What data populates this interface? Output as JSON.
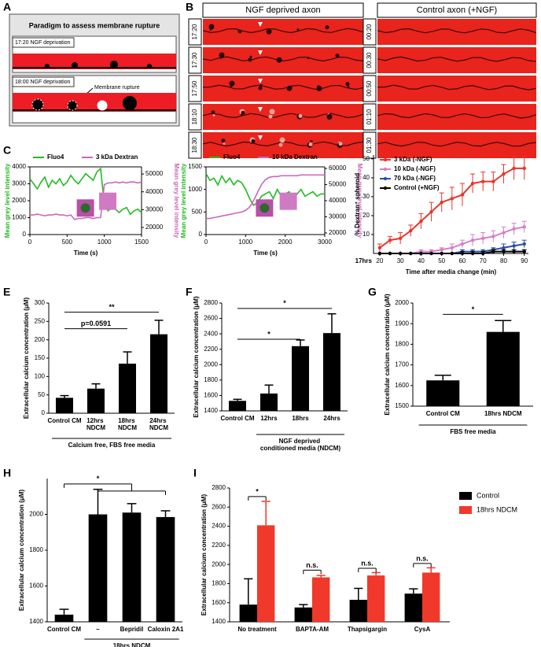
{
  "panel_labels": [
    "A",
    "B",
    "C",
    "D",
    "E",
    "F",
    "G",
    "H",
    "I"
  ],
  "panel_a": {
    "title": "Paradigm to assess membrane rupture",
    "stage_1": "17:20 NGF deprivation",
    "stage_2": "18:00 NGF deprivation",
    "annotation": "Membrane rupture"
  },
  "panel_b": {
    "left_header": "NGF deprived axon",
    "right_header": "Control axon (+NGF)",
    "left_times": [
      "17:20",
      "17:30",
      "17:50",
      "18:10",
      "18:30"
    ],
    "right_times": [
      "00:20",
      "00:30",
      "00:50",
      "01:10",
      "01:30"
    ]
  },
  "chart_data": [
    {
      "type": "line",
      "xlabel": "Time (s)",
      "ylabel": "Mean grey level intensity",
      "y2label": "Mean grey level intensity",
      "x": [
        0,
        50,
        100,
        150,
        200,
        250,
        300,
        350,
        400,
        450,
        500,
        550,
        600,
        650,
        700,
        750,
        800,
        850,
        900,
        950,
        1000,
        1050,
        1100,
        1150,
        1200,
        1250,
        1300,
        1350,
        1400,
        1450,
        1500
      ],
      "xlim": [
        0,
        1500
      ],
      "xticks": [
        0,
        500,
        1000,
        1500
      ],
      "ylim": [
        0,
        4000
      ],
      "yticks": [
        0,
        1000,
        2000,
        3000,
        4000
      ],
      "y2lim": [
        16000,
        54000
      ],
      "y2ticks": [
        20000,
        30000,
        40000,
        50000
      ],
      "series": [
        {
          "name": "Fluo4",
          "color": "#22bb22",
          "values": [
            3300,
            3000,
            2700,
            3100,
            3400,
            2800,
            3200,
            3000,
            3300,
            2900,
            3100,
            3500,
            3200,
            3000,
            3300,
            3600,
            3400,
            3200,
            3700,
            3900,
            1800,
            1400,
            1600,
            1500,
            1300,
            1500,
            1600,
            1200,
            1400,
            1500,
            1300
          ]
        },
        {
          "name": "3 kDa Dextran",
          "color": "#cc66bb",
          "axis": "y2",
          "values": [
            27000,
            27000,
            27500,
            27000,
            26500,
            27000,
            27000,
            27500,
            27000,
            27000,
            26500,
            27000,
            24500,
            25000,
            25000,
            25500,
            25500,
            25000,
            25500,
            25500,
            44000,
            45000,
            45000,
            45500,
            45000,
            45500,
            45000,
            45500,
            45500,
            45000,
            45500
          ]
        }
      ]
    },
    {
      "type": "line",
      "xlabel": "Time (s)",
      "ylabel": "Mean grey level intensity",
      "y2label": "Mean grey level intensity",
      "x": [
        0,
        100,
        200,
        300,
        400,
        500,
        600,
        700,
        800,
        900,
        1000,
        1100,
        1200,
        1300,
        1400,
        1500,
        1600,
        1700,
        1800,
        1900,
        2000,
        2100,
        2200,
        2300,
        2400,
        2500,
        2600,
        2700,
        2800,
        2900,
        3000
      ],
      "xlim": [
        0,
        3000
      ],
      "xticks": [
        0,
        1000,
        2000,
        3000
      ],
      "ylim": [
        0,
        1500
      ],
      "yticks": [
        0,
        500,
        1000,
        1500
      ],
      "y2lim": [
        19000,
        61000
      ],
      "y2ticks": [
        20000,
        30000,
        40000,
        50000,
        60000
      ],
      "series": [
        {
          "name": "Fluo4",
          "color": "#22bb22",
          "values": [
            1350,
            1200,
            1250,
            1100,
            1300,
            1150,
            1250,
            1100,
            1200,
            1150,
            1000,
            800,
            650,
            700,
            850,
            900,
            950,
            800,
            1000,
            850,
            900,
            950,
            800,
            900,
            1000,
            850,
            900,
            950,
            850,
            900,
            900
          ]
        },
        {
          "name": "10 kDa Dextran",
          "color": "#cc66bb",
          "axis": "y2",
          "values": [
            29000,
            29000,
            29500,
            30000,
            30500,
            31000,
            31500,
            32000,
            32500,
            33000,
            34000,
            36000,
            40000,
            45000,
            50000,
            53000,
            54500,
            55000,
            55000,
            55500,
            55500,
            55500,
            55500,
            55500,
            56000,
            56000,
            56000,
            56000,
            56000,
            56000,
            56000
          ]
        }
      ]
    },
    {
      "type": "line",
      "xlabel": "Time after media change (min)",
      "ylabel": "% Dextran⁺ spheroid",
      "x_origin_label": "17hrs",
      "legend": "upper left",
      "x": [
        20,
        25,
        30,
        35,
        40,
        45,
        50,
        55,
        60,
        65,
        70,
        75,
        80,
        85,
        90
      ],
      "xlim": [
        17,
        92
      ],
      "xticks": [
        20,
        30,
        40,
        50,
        60,
        70,
        80,
        90
      ],
      "ylim": [
        0,
        52
      ],
      "yticks": [
        10,
        20,
        30,
        40,
        50
      ],
      "series": [
        {
          "name": "3 kDa (-NGF)",
          "color": "#e8352b",
          "values": [
            3,
            7,
            8,
            12,
            17,
            22,
            27,
            29,
            31,
            37,
            38,
            38,
            42,
            45,
            45
          ],
          "errors": [
            2,
            2,
            3,
            3,
            4,
            5,
            5,
            6,
            6,
            5,
            5,
            5,
            5,
            6,
            6
          ]
        },
        {
          "name": "10 kDa (-NGF)",
          "color": "#d77fc8",
          "values": [
            0,
            0,
            0,
            0,
            1,
            1,
            2,
            3,
            5,
            7,
            8,
            9,
            11,
            13,
            14
          ],
          "errors": [
            0,
            0,
            0,
            0,
            1,
            1,
            1,
            2,
            2,
            3,
            3,
            3,
            3,
            3,
            3
          ]
        },
        {
          "name": "70 kDa (-NGF)",
          "color": "#2b4fa8",
          "values": [
            0,
            0,
            0,
            0,
            0,
            0,
            0,
            0,
            1,
            1,
            1,
            2,
            3,
            4,
            5
          ],
          "errors": [
            0,
            0,
            0,
            0,
            0,
            0,
            0,
            0,
            1,
            1,
            1,
            1,
            2,
            2,
            2
          ]
        },
        {
          "name": "Control (+NGF)",
          "color": "#000000",
          "values": [
            0,
            0,
            0,
            0,
            0,
            0,
            0,
            0,
            0,
            0,
            0,
            1,
            1,
            1,
            1
          ],
          "errors": [
            0,
            0,
            0,
            0,
            0,
            0,
            0,
            0,
            1,
            1,
            1,
            1,
            1,
            1,
            1
          ]
        }
      ]
    },
    {
      "type": "bar",
      "ylabel": "Extracellular calcium concentration (μM)",
      "categories": [
        "Control CM",
        "12hrs\nNDCM",
        "18hrs\nNDCM",
        "24hrs\nNDCM"
      ],
      "values": [
        42,
        67,
        135,
        215
      ],
      "errors": [
        6,
        13,
        32,
        38
      ],
      "color": "#000000",
      "ylim": [
        0,
        300
      ],
      "yticks": [
        0,
        50,
        100,
        150,
        200,
        250,
        300
      ],
      "annotations": [
        "**",
        "p=0.0591"
      ],
      "footer": "Calcium free, FBS free media"
    },
    {
      "type": "bar",
      "ylabel": "Extracellular calcium concentration (μM)",
      "categories": [
        "Control CM",
        "12hrs",
        "18hrs",
        "24hrs"
      ],
      "values": [
        1530,
        1625,
        2240,
        2410
      ],
      "errors": [
        20,
        110,
        80,
        250
      ],
      "color": "#000000",
      "ylim": [
        1400,
        2800
      ],
      "yticks": [
        1400,
        1600,
        1800,
        2000,
        2200,
        2400,
        2600,
        2800
      ],
      "annotations": [
        "*",
        "*"
      ],
      "footer": "NGF deprived\nconditioned media (NDCM)"
    },
    {
      "type": "bar",
      "ylabel": "Extracellular calcium concentration (μM)",
      "categories": [
        "Control CM",
        "18hrs NDCM"
      ],
      "values": [
        1625,
        1860
      ],
      "errors": [
        25,
        55
      ],
      "color": "#000000",
      "ylim": [
        1500,
        2000
      ],
      "yticks": [
        1500,
        1600,
        1700,
        1800,
        1900,
        2000
      ],
      "annotations": [
        "*"
      ],
      "footer": "FBS free media"
    },
    {
      "type": "bar",
      "ylabel": "Extracellular calcium concentration (μM)",
      "categories": [
        "Control CM",
        "–",
        "Bepridil",
        "Caloxin 2A1"
      ],
      "values": [
        1440,
        2000,
        2010,
        1985
      ],
      "errors": [
        30,
        140,
        50,
        35
      ],
      "color": "#000000",
      "ylim": [
        1400,
        2200
      ],
      "yticks": [
        1400,
        1600,
        1800,
        2000
      ],
      "annotations": [
        "*"
      ],
      "footer": "18hrs NDCM"
    },
    {
      "type": "bar",
      "ylabel": "Extracellular calcium concentration (μM)",
      "categories": [
        "No treatment",
        "BAPTA-AM",
        "Thapsigargin",
        "CysA"
      ],
      "legend": "upper right",
      "series": [
        {
          "name": "Control",
          "color": "#000000",
          "values": [
            1580,
            1550,
            1630,
            1695
          ],
          "errors": [
            270,
            30,
            120,
            50
          ]
        },
        {
          "name": "18hrs NDCM",
          "color": "#f0392b",
          "values": [
            2410,
            1865,
            1885,
            1915
          ],
          "errors": [
            250,
            20,
            30,
            50
          ]
        }
      ],
      "ylim": [
        1400,
        2800
      ],
      "yticks": [
        1400,
        1600,
        1800,
        2000,
        2200,
        2400,
        2600,
        2800
      ],
      "annotations": [
        "*",
        "n.s.",
        "n.s.",
        "n.s."
      ]
    }
  ]
}
